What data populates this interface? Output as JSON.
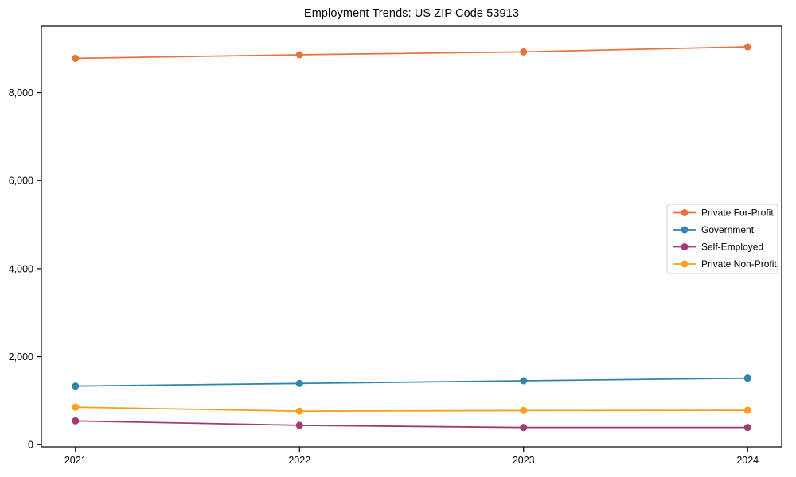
{
  "chart_data": {
    "type": "line",
    "title": "Employment Trends: US ZIP Code 53913",
    "xlabel": "",
    "ylabel": "",
    "categories": [
      "2021",
      "2022",
      "2023",
      "2024"
    ],
    "series": [
      {
        "name": "Private For-Profit",
        "color": "#E8743B",
        "values": [
          8780,
          8860,
          8925,
          9040
        ]
      },
      {
        "name": "Government",
        "color": "#2E86AB",
        "values": [
          1330,
          1390,
          1450,
          1510
        ]
      },
      {
        "name": "Self-Employed",
        "color": "#A23B72",
        "values": [
          540,
          440,
          390,
          390
        ]
      },
      {
        "name": "Private Non-Profit",
        "color": "#F5A01E",
        "values": [
          850,
          760,
          775,
          780
        ]
      }
    ],
    "yticks": [
      {
        "value": 0,
        "label": "0"
      },
      {
        "value": 2000,
        "label": "2,000"
      },
      {
        "value": 4000,
        "label": "4,000"
      },
      {
        "value": 6000,
        "label": "6,000"
      },
      {
        "value": 8000,
        "label": "8,000"
      }
    ],
    "ylim": [
      -50,
      9510
    ],
    "grid": false,
    "legend_position": "center right",
    "axis_color": "#000000",
    "background_color": "#ffffff",
    "legend_border_color": "#cccccc"
  }
}
